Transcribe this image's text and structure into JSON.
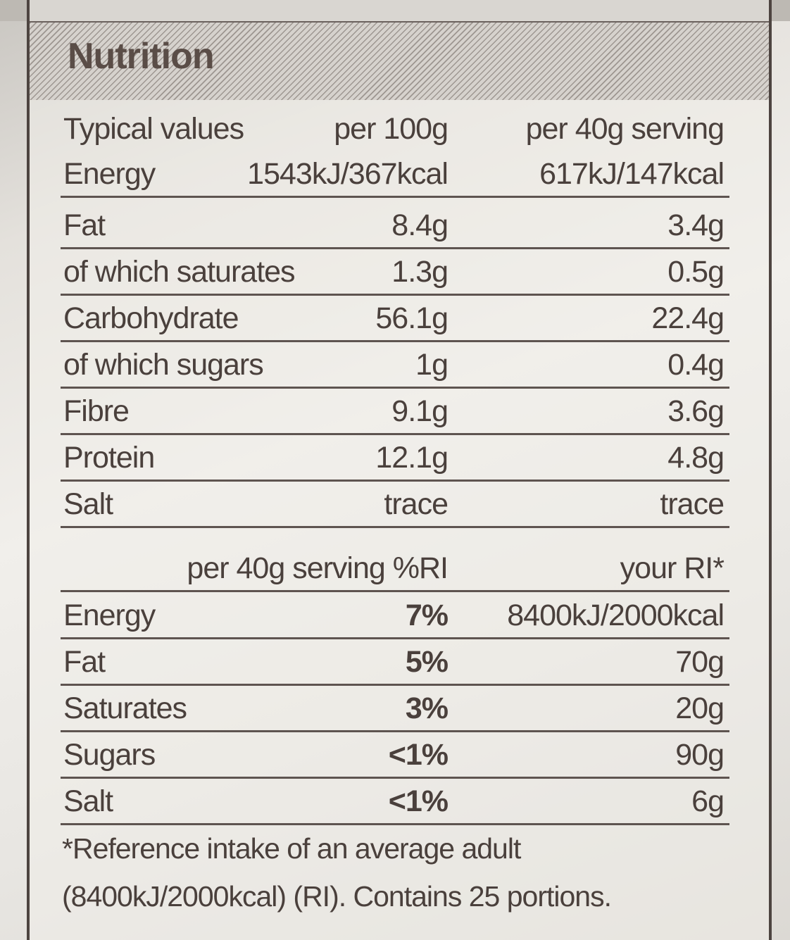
{
  "title": "Nutrition",
  "header_row": {
    "label": "Typical values",
    "per100": "per 100g",
    "perServing": "per 40g serving"
  },
  "energy_row": {
    "label": "Energy",
    "per100": "1543kJ/367kcal",
    "perServing": "617kJ/147kcal"
  },
  "nutrients": [
    {
      "label": "Fat",
      "per100": "8.4g",
      "perServing": "3.4g"
    },
    {
      "label": "of which saturates",
      "per100": "1.3g",
      "perServing": "0.5g"
    },
    {
      "label": "Carbohydrate",
      "per100": "56.1g",
      "perServing": "22.4g"
    },
    {
      "label": "of which sugars",
      "per100": "1g",
      "perServing": "0.4g"
    },
    {
      "label": "Fibre",
      "per100": "9.1g",
      "perServing": "3.6g"
    },
    {
      "label": "Protein",
      "per100": "12.1g",
      "perServing": "4.8g"
    },
    {
      "label": "Salt",
      "per100": "trace",
      "perServing": "trace"
    }
  ],
  "ri_header": {
    "label": "per 40g serving %RI",
    "yourRi": "your RI*"
  },
  "ri_rows": [
    {
      "label": "Energy",
      "pct": "7%",
      "ri": "8400kJ/2000kcal"
    },
    {
      "label": "Fat",
      "pct": "5%",
      "ri": "70g"
    },
    {
      "label": "Saturates",
      "pct": "3%",
      "ri": "20g"
    },
    {
      "label": "Sugars",
      "pct": "<1%",
      "ri": "90g"
    },
    {
      "label": "Salt",
      "pct": "<1%",
      "ri": "6g"
    }
  ],
  "footnote": {
    "line1": "*Reference intake of an average adult",
    "line2": "(8400kJ/2000kcal) (RI). Contains 25 portions."
  }
}
